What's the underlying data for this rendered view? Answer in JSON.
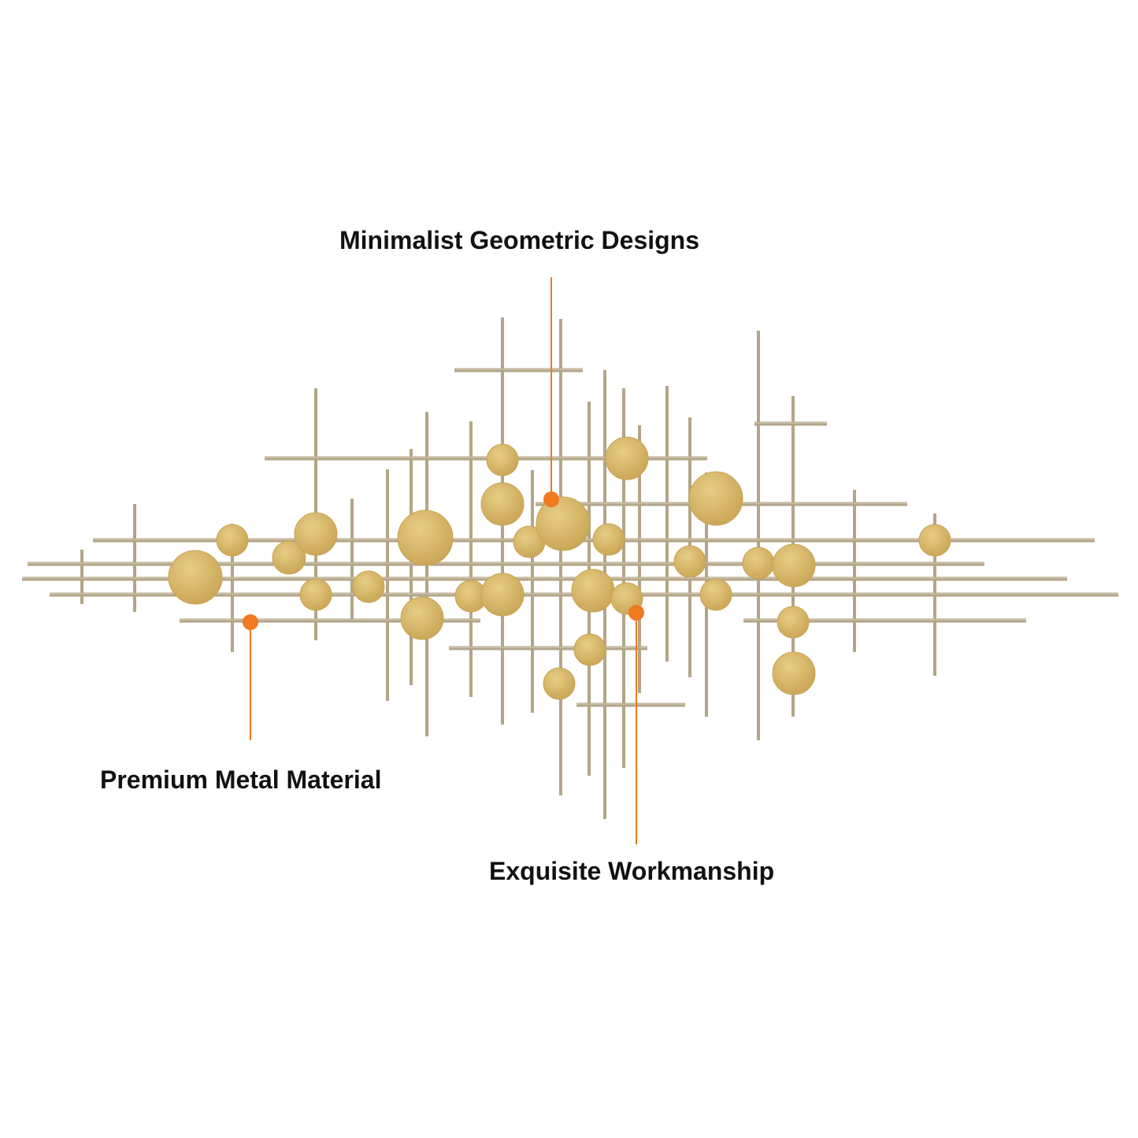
{
  "callouts": {
    "top": "Minimalist Geometric Designs",
    "left": "Premium Metal Material",
    "bottom": "Exquisite Workmanship"
  },
  "colors": {
    "rod": "#b3a588",
    "rod_highlight": "#d8cfbd",
    "disc_light": "#e8cd86",
    "disc_dark": "#c9a455",
    "callout_accent": "#f07a20",
    "text": "#111111",
    "background": "#ffffff"
  }
}
